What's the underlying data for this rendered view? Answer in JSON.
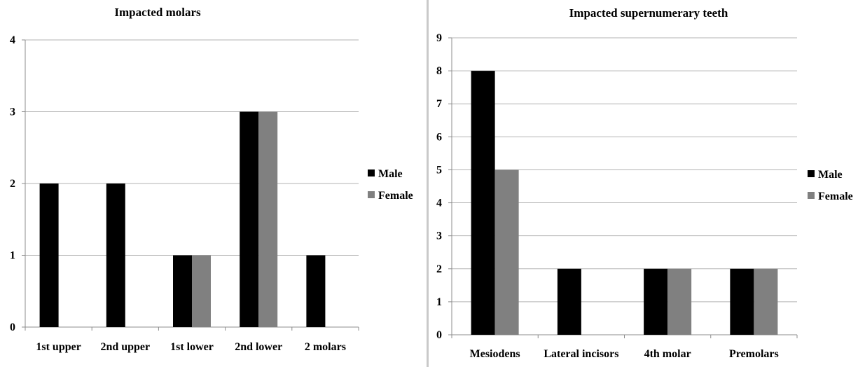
{
  "colors": {
    "male": "#000000",
    "female": "#808080",
    "grid": "#b3b3b3",
    "axis": "#8c8c8c"
  },
  "chart_data": [
    {
      "type": "bar",
      "title": "Impacted molars",
      "categories": [
        "1st upper",
        "2nd upper",
        "1st lower",
        "2nd lower",
        "2 molars"
      ],
      "series": [
        {
          "name": "Male",
          "values": [
            2,
            2,
            1,
            3,
            1
          ]
        },
        {
          "name": "Female",
          "values": [
            0,
            0,
            1,
            3,
            0
          ]
        }
      ],
      "ylim": [
        0,
        4
      ],
      "yticks": [
        "0",
        "1",
        "2",
        "3",
        "4"
      ],
      "grid": true,
      "legend": "right"
    },
    {
      "type": "bar",
      "title": "Impacted supernumerary teeth",
      "categories": [
        "Mesiodens",
        "Lateral incisors",
        "4th molar",
        "Premolars"
      ],
      "series": [
        {
          "name": "Male",
          "values": [
            8,
            2,
            2,
            2
          ]
        },
        {
          "name": "Female",
          "values": [
            5,
            0,
            2,
            2
          ]
        }
      ],
      "ylim": [
        0,
        9
      ],
      "yticks": [
        "0",
        "1",
        "2",
        "3",
        "4",
        "5",
        "6",
        "7",
        "8",
        "9"
      ],
      "grid": true,
      "legend": "right"
    }
  ]
}
